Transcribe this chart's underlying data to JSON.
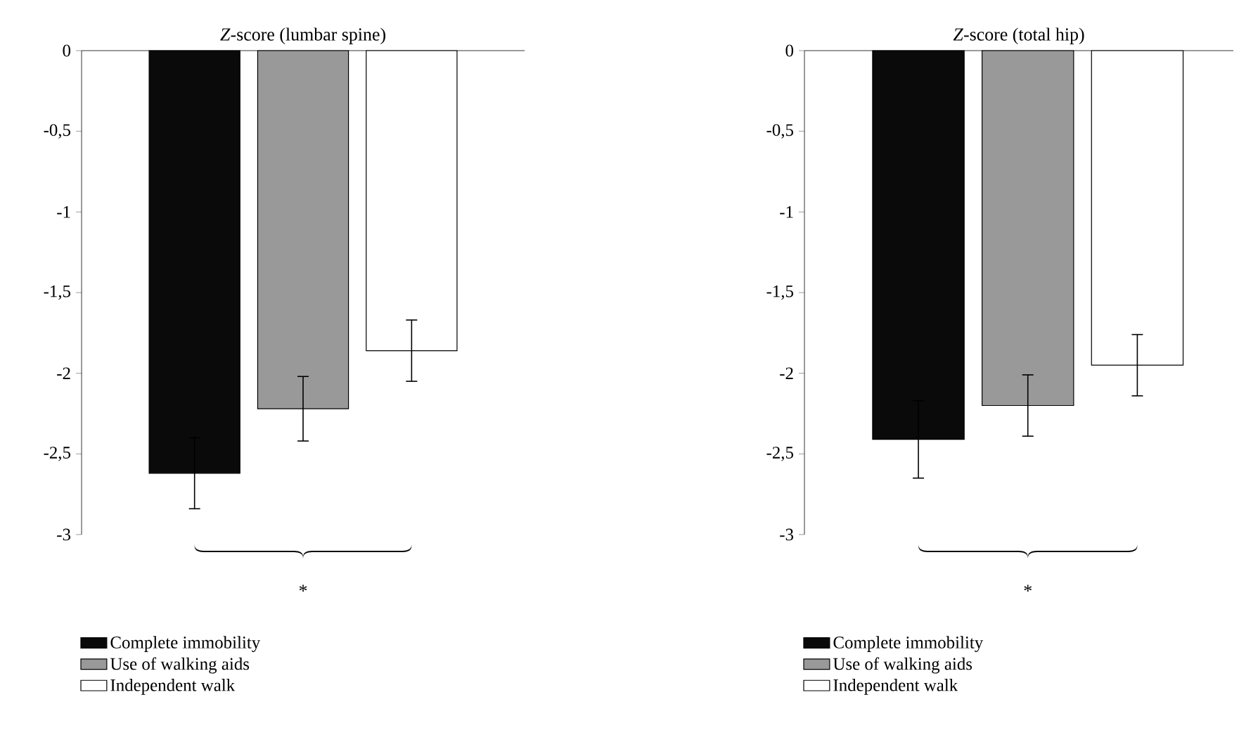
{
  "chart_data": [
    {
      "type": "bar",
      "title": "*Z*-score (lumbar spine)",
      "categories": [
        null
      ],
      "series": [
        {
          "name": "Complete immobility",
          "color": "#0a0a0a",
          "values": [
            -2.62
          ],
          "errors": [
            0.22
          ]
        },
        {
          "name": "Use of walking aids",
          "color": "#999999",
          "values": [
            -2.22
          ],
          "errors": [
            0.2
          ]
        },
        {
          "name": "Independent walk",
          "color": "#ffffff",
          "values": [
            -1.86
          ],
          "errors": [
            0.19
          ]
        }
      ],
      "ylim": [
        -3,
        0
      ],
      "yticks": [
        {
          "value": 0,
          "label": "0"
        },
        {
          "value": -0.5,
          "label": "-0,5"
        },
        {
          "value": -1,
          "label": "-1"
        },
        {
          "value": -1.5,
          "label": "-1,5"
        },
        {
          "value": -2,
          "label": "-2"
        },
        {
          "value": -2.5,
          "label": "-2,5"
        },
        {
          "value": -3,
          "label": "-3"
        }
      ],
      "annotations": [
        "*"
      ],
      "legend": "bottom left",
      "grid": false
    },
    {
      "type": "bar",
      "title": "*Z*-score (total hip)",
      "categories": [
        null
      ],
      "series": [
        {
          "name": "Complete immobility",
          "color": "#0a0a0a",
          "values": [
            -2.41
          ],
          "errors": [
            0.24
          ]
        },
        {
          "name": "Use of walking aids",
          "color": "#999999",
          "values": [
            -2.2
          ],
          "errors": [
            0.19
          ]
        },
        {
          "name": "Independent walk",
          "color": "#ffffff",
          "values": [
            -1.95
          ],
          "errors": [
            0.19
          ]
        }
      ],
      "ylim": [
        -3,
        0
      ],
      "yticks": [
        {
          "value": 0,
          "label": "0"
        },
        {
          "value": -0.5,
          "label": "-0,5"
        },
        {
          "value": -1,
          "label": "-1"
        },
        {
          "value": -1.5,
          "label": "-1,5"
        },
        {
          "value": -2,
          "label": "-2"
        },
        {
          "value": -2.5,
          "label": "-2,5"
        },
        {
          "value": -3,
          "label": "-3"
        }
      ],
      "annotations": [
        "*"
      ],
      "legend": "bottom left",
      "grid": false
    }
  ]
}
